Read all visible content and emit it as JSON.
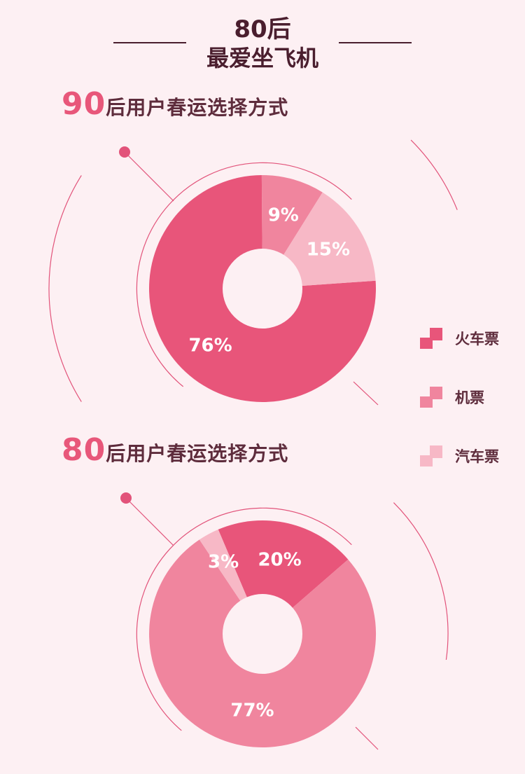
{
  "header": {
    "line1": "80后",
    "line2": "最爱坐飞机"
  },
  "legend": {
    "items": [
      {
        "label": "火车票",
        "color": "#e8557a"
      },
      {
        "label": "机票",
        "color": "#f0859e"
      },
      {
        "label": "汽车票",
        "color": "#f7b8c6"
      }
    ]
  },
  "chart_data": [
    {
      "type": "pie",
      "title_num": "90",
      "title_text": "后用户春运选择方式",
      "categories": [
        "火车票",
        "机票",
        "汽车票"
      ],
      "values": [
        76,
        9,
        15
      ],
      "labels": [
        "76%",
        "9%",
        "15%"
      ],
      "colors": [
        "#e8557a",
        "#f0859e",
        "#f7b8c6"
      ],
      "donut": true
    },
    {
      "type": "pie",
      "title_num": "80",
      "title_text": "后用户春运选择方式",
      "categories": [
        "火车票",
        "机票",
        "汽车票"
      ],
      "values": [
        20,
        77,
        3
      ],
      "labels": [
        "20%",
        "77%",
        "3%"
      ],
      "colors": [
        "#e8557a",
        "#f0859e",
        "#f7b8c6"
      ],
      "donut": true
    }
  ]
}
